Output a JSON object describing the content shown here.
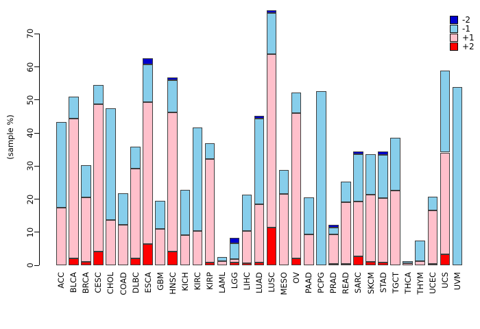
{
  "chart_data": {
    "type": "bar",
    "stacked": true,
    "title": "",
    "xlabel": "",
    "ylabel": "(sample %)",
    "ylim": [
      0,
      70
    ],
    "yticks": [
      0,
      10,
      20,
      30,
      40,
      50,
      60,
      70
    ],
    "grid": false,
    "legend_position": "top-right",
    "legend_order": [
      "-2",
      "-1",
      "+1",
      "+2"
    ],
    "bar_border_color": "#3d3d3d",
    "axis_color": "#000000",
    "categories": [
      "ACC",
      "BLCA",
      "BRCA",
      "CESC",
      "CHOL",
      "COAD",
      "DLBC",
      "ESCA",
      "GBM",
      "HNSC",
      "KICH",
      "KIRC",
      "KIRP",
      "LAML",
      "LGG",
      "LIHC",
      "LUAD",
      "LUSC",
      "MESO",
      "OV",
      "PAAD",
      "PCPG",
      "PRAD",
      "READ",
      "SARC",
      "SKCM",
      "STAD",
      "TGCT",
      "THCA",
      "THYM",
      "UCEC",
      "UCS",
      "UVM"
    ],
    "series": [
      {
        "name": "+2",
        "color": "#FF0000",
        "values": [
          0,
          2.0,
          1.0,
          4.2,
          0,
          0,
          2.0,
          6.4,
          0,
          4.1,
          0,
          0,
          0.9,
          0,
          0.8,
          0.6,
          0.9,
          11.3,
          0,
          2.0,
          0,
          0,
          0.4,
          0.5,
          2.6,
          1.1,
          0.8,
          0,
          0,
          0,
          0.5,
          3.3,
          0
        ]
      },
      {
        "name": "+1",
        "color": "#FFC0CB",
        "values": [
          17.5,
          42.4,
          19.6,
          44.6,
          13.6,
          12.3,
          27.3,
          42.9,
          10.9,
          42.1,
          9.1,
          10.3,
          31.3,
          1.2,
          1.0,
          9.7,
          17.6,
          52.5,
          21.5,
          44.0,
          9.3,
          0,
          9.0,
          18.6,
          16.7,
          20.2,
          19.5,
          22.5,
          0.6,
          1.2,
          16.0,
          30.8,
          0
        ]
      },
      {
        "name": "-1",
        "color": "#87CEEB",
        "values": [
          25.9,
          6.6,
          9.7,
          5.7,
          33.8,
          9.5,
          6.5,
          11.4,
          8.5,
          9.8,
          13.6,
          31.4,
          4.6,
          1.3,
          4.8,
          11.0,
          25.8,
          12.5,
          7.4,
          6.2,
          11.2,
          52.6,
          1.9,
          6.2,
          14.3,
          12.2,
          13.1,
          16.1,
          0.6,
          6.3,
          4.2,
          24.8,
          53.8
        ]
      },
      {
        "name": "-2",
        "color": "#0000CD",
        "values": [
          0,
          0,
          0,
          0,
          0,
          0,
          0,
          2.0,
          0,
          0.7,
          0,
          0,
          0,
          0,
          1.6,
          0,
          0.8,
          0.8,
          0,
          0,
          0,
          0,
          0.9,
          0,
          0.9,
          0,
          1.1,
          0,
          0,
          0,
          0,
          0,
          0
        ]
      }
    ],
    "legend_entries": [
      {
        "label": "-2",
        "color": "#0000CD"
      },
      {
        "label": "-1",
        "color": "#87CEEB"
      },
      {
        "label": "+1",
        "color": "#FFC0CB"
      },
      {
        "label": "+2",
        "color": "#FF0000"
      }
    ]
  }
}
